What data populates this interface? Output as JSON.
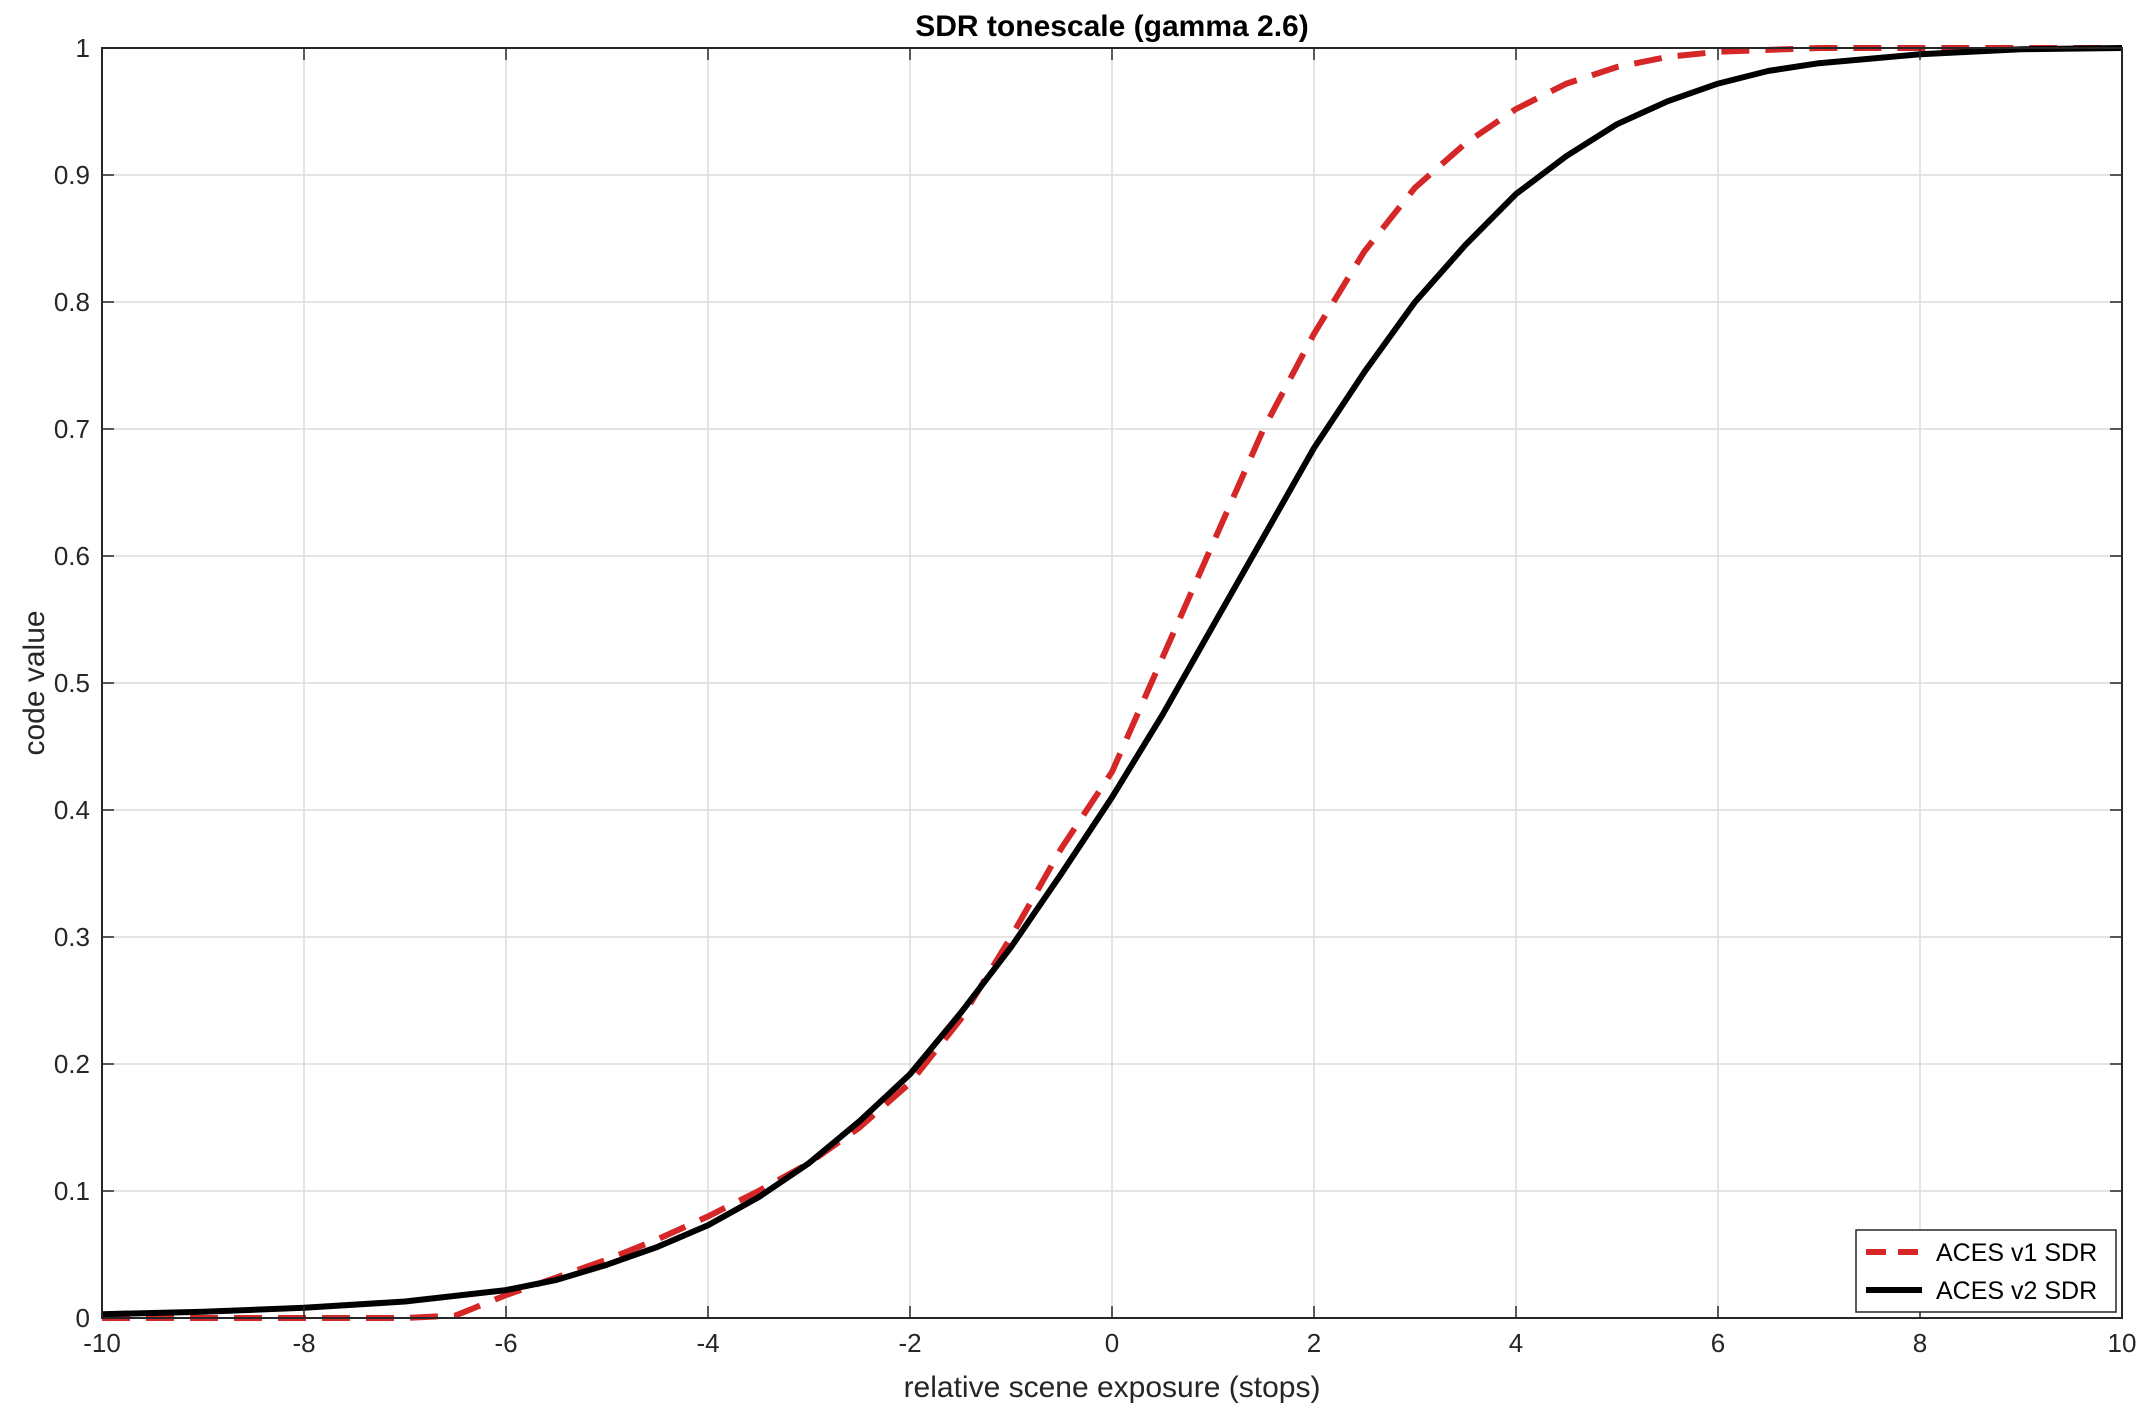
{
  "chart_data": {
    "type": "line",
    "title": "SDR tonescale (gamma 2.6)",
    "xlabel": "relative scene exposure (stops)",
    "ylabel": "code value",
    "xlim": [
      -10,
      10
    ],
    "ylim": [
      0,
      1
    ],
    "xticks": [
      -10,
      -8,
      -6,
      -4,
      -2,
      0,
      2,
      4,
      6,
      8,
      10
    ],
    "yticks": [
      0,
      0.1,
      0.2,
      0.3,
      0.4,
      0.5,
      0.6,
      0.7,
      0.8,
      0.9,
      1
    ],
    "xtick_labels": [
      "-10",
      "-8",
      "-6",
      "-4",
      "-2",
      "0",
      "2",
      "4",
      "6",
      "8",
      "10"
    ],
    "ytick_labels": [
      "0",
      "0.1",
      "0.2",
      "0.3",
      "0.4",
      "0.5",
      "0.6",
      "0.7",
      "0.8",
      "0.9",
      "1"
    ],
    "grid": true,
    "legend_position": "bottom-right",
    "series": [
      {
        "name": "ACES v1 SDR",
        "color": "#d62728",
        "style": "dashed",
        "x": [
          -10,
          -9,
          -8,
          -7,
          -6.5,
          -6,
          -5.5,
          -5,
          -4.5,
          -4,
          -3.5,
          -3,
          -2.5,
          -2,
          -1.5,
          -1,
          -0.5,
          0,
          0.5,
          1,
          1.5,
          2,
          2.5,
          3,
          3.5,
          4,
          4.5,
          5,
          5.5,
          6,
          7,
          8,
          9,
          10
        ],
        "y": [
          0,
          0,
          0,
          0,
          0.002,
          0.018,
          0.032,
          0.046,
          0.062,
          0.08,
          0.1,
          0.122,
          0.15,
          0.185,
          0.235,
          0.3,
          0.37,
          0.43,
          0.52,
          0.61,
          0.7,
          0.775,
          0.84,
          0.89,
          0.925,
          0.952,
          0.972,
          0.985,
          0.993,
          0.997,
          1.0,
          1.0,
          1.0,
          1.0
        ]
      },
      {
        "name": "ACES v2 SDR",
        "color": "#000000",
        "style": "solid",
        "x": [
          -10,
          -9,
          -8,
          -7,
          -6,
          -5.5,
          -5,
          -4.5,
          -4,
          -3.5,
          -3,
          -2.5,
          -2,
          -1.5,
          -1,
          -0.5,
          0,
          0.5,
          1,
          1.5,
          2,
          2.5,
          3,
          3.5,
          4,
          4.5,
          5,
          5.5,
          6,
          6.5,
          7,
          8,
          9,
          10
        ],
        "y": [
          0.003,
          0.005,
          0.008,
          0.013,
          0.022,
          0.03,
          0.042,
          0.056,
          0.073,
          0.095,
          0.122,
          0.155,
          0.192,
          0.24,
          0.292,
          0.35,
          0.41,
          0.475,
          0.545,
          0.615,
          0.685,
          0.745,
          0.8,
          0.845,
          0.885,
          0.915,
          0.94,
          0.958,
          0.972,
          0.982,
          0.988,
          0.995,
          0.999,
          1.0
        ]
      }
    ]
  }
}
